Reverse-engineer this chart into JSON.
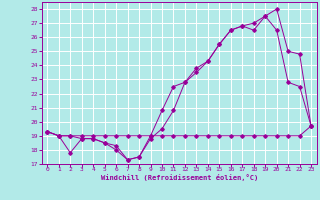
{
  "xlabel": "Windchill (Refroidissement éolien,°C)",
  "background_color": "#b2eae8",
  "line_color": "#990099",
  "grid_color": "#ffffff",
  "xlim": [
    -0.5,
    23.5
  ],
  "ylim": [
    17,
    28.5
  ],
  "xticks": [
    0,
    1,
    2,
    3,
    4,
    5,
    6,
    7,
    8,
    9,
    10,
    11,
    12,
    13,
    14,
    15,
    16,
    17,
    18,
    19,
    20,
    21,
    22,
    23
  ],
  "yticks": [
    17,
    18,
    19,
    20,
    21,
    22,
    23,
    24,
    25,
    26,
    27,
    28
  ],
  "line1_x": [
    0,
    1,
    2,
    3,
    4,
    5,
    6,
    7,
    8,
    9,
    10,
    11,
    12,
    13,
    14,
    15,
    16,
    17,
    18,
    19,
    20,
    21,
    22,
    23
  ],
  "line1_y": [
    19.3,
    19.0,
    17.8,
    18.8,
    18.8,
    18.5,
    18.3,
    17.3,
    17.5,
    18.8,
    19.5,
    20.8,
    22.8,
    23.8,
    24.3,
    25.5,
    26.5,
    26.8,
    27.0,
    27.5,
    28.0,
    25.0,
    24.8,
    19.7
  ],
  "line2_x": [
    0,
    1,
    2,
    3,
    4,
    5,
    6,
    7,
    8,
    9,
    10,
    11,
    12,
    13,
    14,
    15,
    16,
    17,
    18,
    19,
    20,
    21,
    22,
    23
  ],
  "line2_y": [
    19.3,
    19.0,
    19.0,
    19.0,
    19.0,
    19.0,
    19.0,
    19.0,
    19.0,
    19.0,
    19.0,
    19.0,
    19.0,
    19.0,
    19.0,
    19.0,
    19.0,
    19.0,
    19.0,
    19.0,
    19.0,
    19.0,
    19.0,
    19.7
  ],
  "line3_x": [
    0,
    1,
    2,
    3,
    4,
    5,
    6,
    7,
    8,
    9,
    10,
    11,
    12,
    13,
    14,
    15,
    16,
    17,
    18,
    19,
    20,
    21,
    22,
    23
  ],
  "line3_y": [
    19.3,
    19.0,
    19.0,
    18.8,
    18.8,
    18.5,
    18.0,
    17.3,
    17.5,
    19.0,
    20.8,
    22.5,
    22.8,
    23.5,
    24.3,
    25.5,
    26.5,
    26.8,
    26.5,
    27.5,
    26.5,
    22.8,
    22.5,
    19.7
  ]
}
